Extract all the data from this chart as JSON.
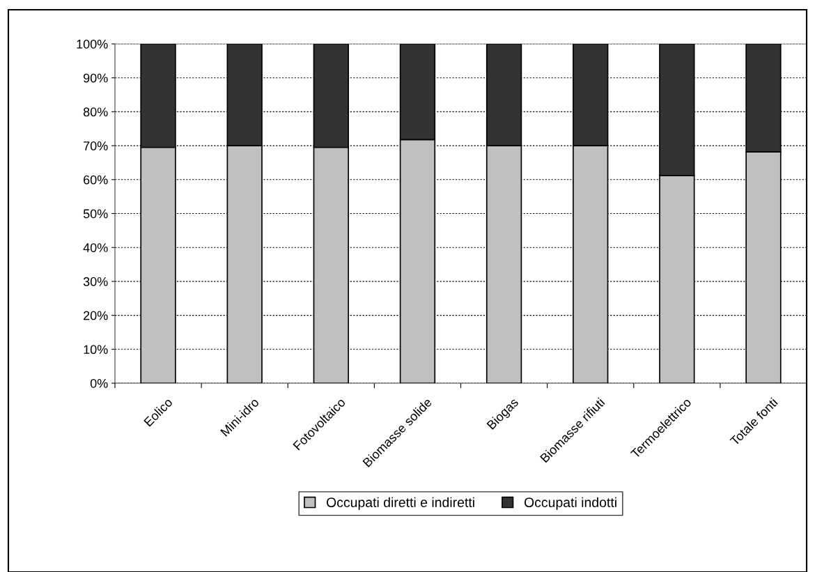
{
  "chart_data": {
    "type": "bar",
    "stacked": true,
    "categories": [
      "Eolico",
      "Mini-idro",
      "Fotovoltaico",
      "Biomasse solide",
      "Biogas",
      "Biomasse rifiuti",
      "Termoelettrico",
      "Totale fonti"
    ],
    "series": [
      {
        "name": "Occupati diretti e indiretti",
        "color": "#c0c0c0",
        "values": [
          69.5,
          70,
          69.5,
          71.8,
          70,
          70,
          61.2,
          68.2
        ]
      },
      {
        "name": "Occupati indotti",
        "color": "#333333",
        "values": [
          30.5,
          30,
          30.5,
          28.2,
          30,
          30,
          38.8,
          31.8
        ]
      }
    ],
    "ylim": [
      0,
      100
    ],
    "yticks": [
      {
        "value": 0,
        "label": "0%"
      },
      {
        "value": 10,
        "label": "10%"
      },
      {
        "value": 20,
        "label": "20%"
      },
      {
        "value": 30,
        "label": "30%"
      },
      {
        "value": 40,
        "label": "40%"
      },
      {
        "value": 50,
        "label": "50%"
      },
      {
        "value": 60,
        "label": "60%"
      },
      {
        "value": 70,
        "label": "70%"
      },
      {
        "value": 80,
        "label": "80%"
      },
      {
        "value": 90,
        "label": "90%"
      },
      {
        "value": 100,
        "label": "100%"
      }
    ],
    "grid": "y",
    "legend": "bottom"
  }
}
